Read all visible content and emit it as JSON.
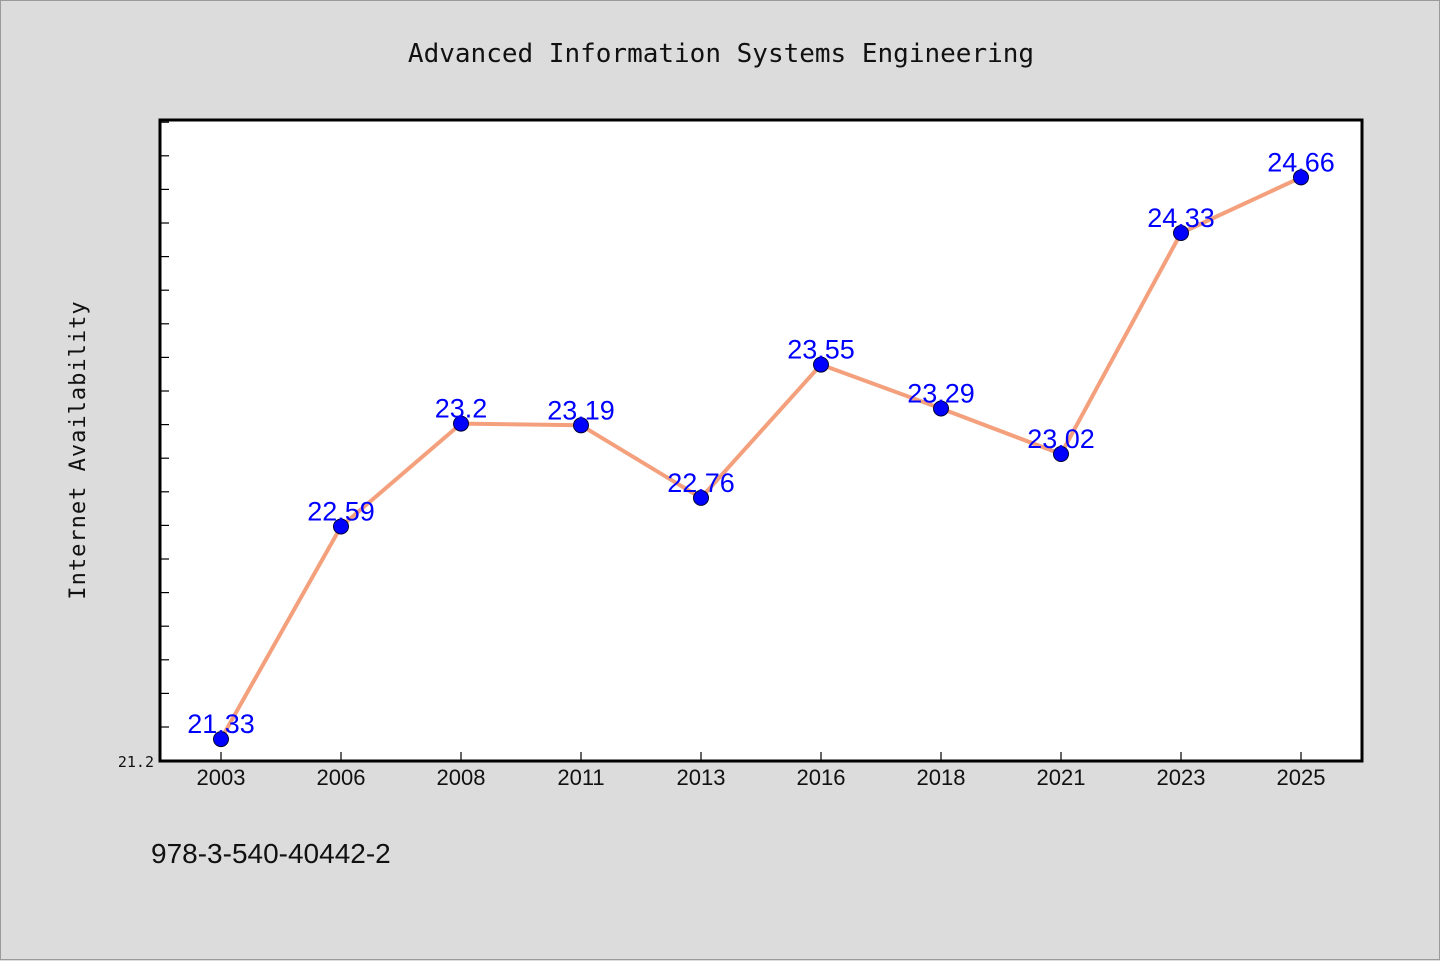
{
  "chart_data": {
    "type": "line",
    "title": "Advanced Information Systems Engineering",
    "xlabel": "",
    "ylabel": "Internet Availability",
    "categories": [
      "2003",
      "2006",
      "2008",
      "2011",
      "2013",
      "2016",
      "2018",
      "2021",
      "2023",
      "2025"
    ],
    "series": [
      {
        "values": [
          21.33,
          22.59,
          23.2,
          23.19,
          22.76,
          23.55,
          23.29,
          23.02,
          24.33,
          24.66
        ],
        "labels": [
          "21.33",
          "22.59",
          "23.2",
          "23.19",
          "22.76",
          "23.55",
          "23.29",
          "23.02",
          "24.33",
          "24.66"
        ],
        "line_color": "#f4a07c",
        "marker_color": "#0000ff"
      }
    ],
    "ylim": [
      21.2,
      25.0
    ],
    "y_tick_labels": [
      "21.2"
    ],
    "grid": false,
    "legend": "none",
    "background_color": "#dcdcdc",
    "plot_background_color": "#ffffff",
    "data_label_color": "#0000ff"
  },
  "footnote": "978-3-540-40442-2"
}
